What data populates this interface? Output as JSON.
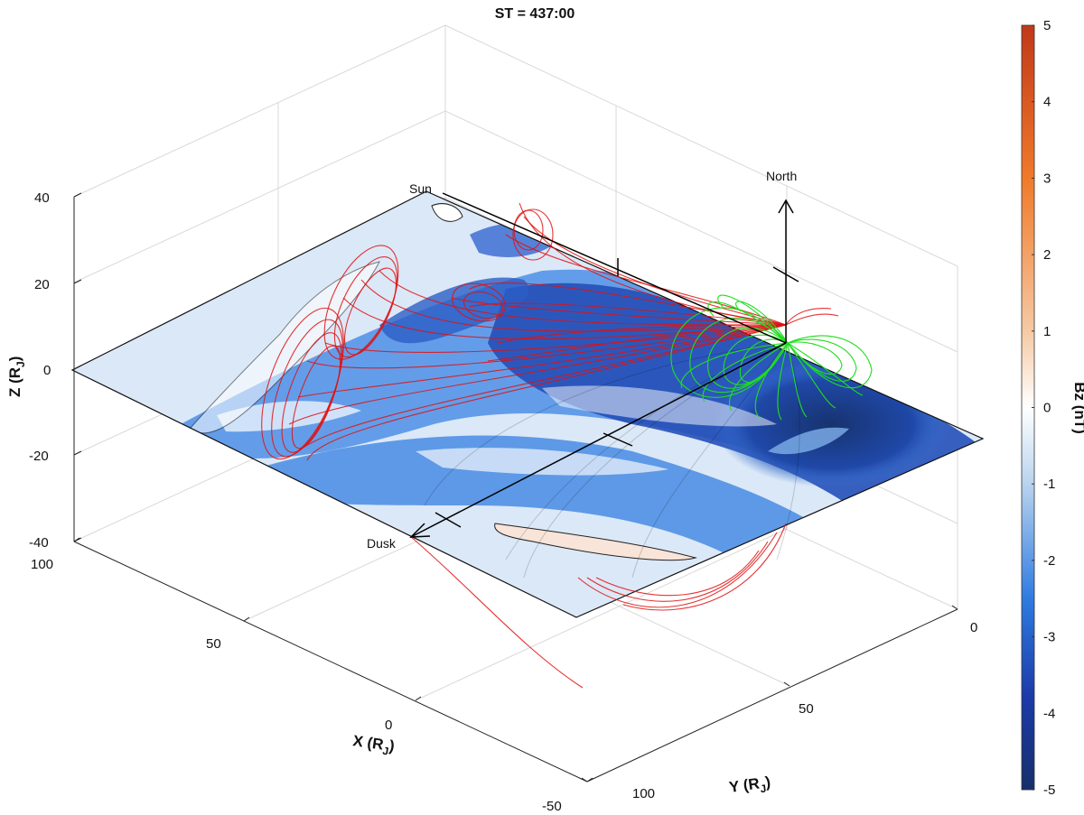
{
  "chart_data": {
    "type": "3d-surface",
    "title": "ST = 437:00",
    "xlabel": "X (R",
    "xlabel_sub": "J",
    "ylabel": "Y (R",
    "ylabel_sub": "J",
    "zlabel": "Z (R",
    "zlabel_sub": "J",
    "x_ticks": [
      "100",
      "50",
      "0",
      "-50"
    ],
    "y_ticks": [
      "0",
      "50",
      "100"
    ],
    "z_ticks": [
      "40",
      "20",
      "0",
      "-20",
      "-40"
    ],
    "xlim": [
      -50,
      100
    ],
    "ylim": [
      0,
      100
    ],
    "zlim": [
      -40,
      40
    ],
    "grid": true,
    "colorbar": {
      "label": "Bz (nT)",
      "ticks": [
        "5",
        "4",
        "3",
        "2",
        "1",
        "0",
        "-1",
        "-2",
        "-3",
        "-4",
        "-5"
      ],
      "range": [
        -5,
        5
      ],
      "colormap": "blue-white-red diverging"
    },
    "annotations": [
      "Sun",
      "North",
      "Dusk"
    ],
    "series": [
      {
        "color": "#e01010"
      },
      {
        "color": "#20dd20"
      },
      {
        "color": "#000000"
      }
    ]
  }
}
